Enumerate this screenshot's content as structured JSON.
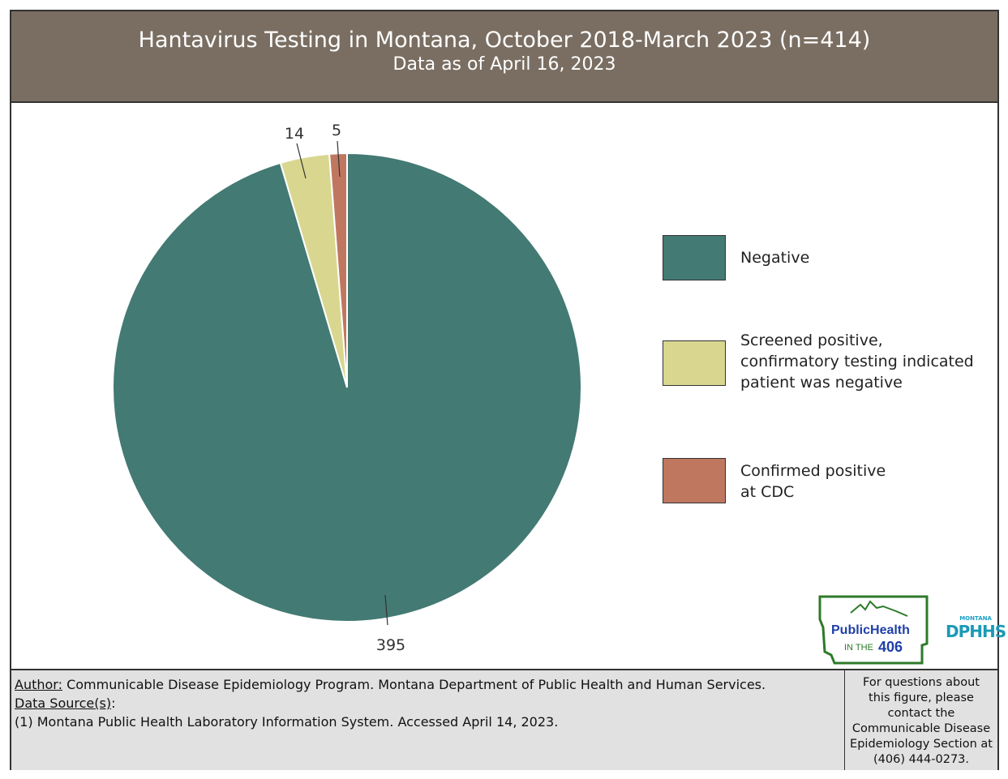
{
  "chart_data": {
    "type": "pie",
    "title": "Hantavirus Testing in Montana, October 2018-March 2023 (n=414)",
    "subtitle": "Data as of April 16, 2023",
    "categories": [
      "Negative",
      "Screened positive, confirmatory testing indicated patient was negative",
      "Confirmed positive at CDC"
    ],
    "legend_labels": [
      "Negative",
      "Screened positive,\nconfirmatory testing indicated\npatient was negative",
      "Confirmed positive\nat CDC"
    ],
    "values": [
      395,
      14,
      5
    ],
    "data_labels": [
      "395",
      "14",
      "5"
    ],
    "colors": [
      "#437a73",
      "#d9d78f",
      "#c07760"
    ],
    "legend_position": "right",
    "start_angle": "12 o'clock, clockwise"
  },
  "footer": {
    "author_label": "Author:",
    "author_text": " Communicable Disease Epidemiology Program. Montana Department of Public Health and Human Services.",
    "source_label": "Data Source(s)",
    "source_colon": ":",
    "source_1": "(1) Montana Public Health Laboratory Information System. Accessed April 14, 2023.",
    "contact": "For questions about\nthis figure, please\ncontact the\nCommunicable Disease\nEpidemiology Section at\n(406) 444-0273."
  },
  "logos": {
    "public_health_line1": "PublicHealth",
    "public_health_line2a": "IN THE ",
    "public_health_line2b": "406",
    "dphhs_top": "MONTANA",
    "dphhs": "DPHHS"
  }
}
